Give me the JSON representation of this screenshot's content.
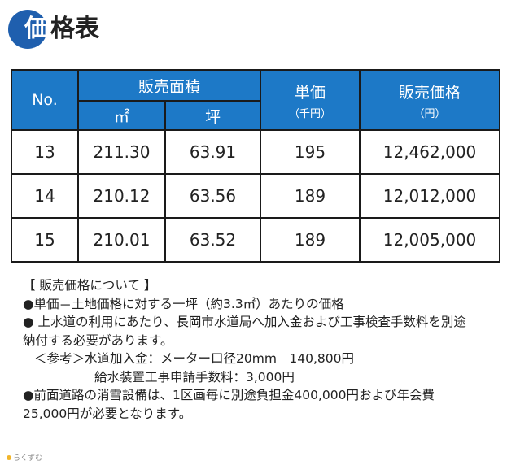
{
  "title": {
    "first_char": "価",
    "rest": "格表"
  },
  "table": {
    "headers": {
      "no": "No.",
      "area": "販売面積",
      "sqm": "㎡",
      "tsubo": "坪",
      "unit_price": "単価",
      "unit_price_sub": "（千円）",
      "sale_price": "販売価格",
      "sale_price_sub": "（円）"
    },
    "rows": [
      {
        "no": "13",
        "sqm": "211.30",
        "tsubo": "63.91",
        "unit": "195",
        "price": "12,462,000"
      },
      {
        "no": "14",
        "sqm": "210.12",
        "tsubo": "63.56",
        "unit": "189",
        "price": "12,012,000"
      },
      {
        "no": "15",
        "sqm": "210.01",
        "tsubo": "63.52",
        "unit": "189",
        "price": "12,005,000"
      }
    ]
  },
  "notes": [
    "【 販売価格について 】",
    "●単価＝土地価格に対する一坪（約3.3㎡）あたりの価格",
    "● 上水道の利用にあたり、長岡市水道局へ加入金および工事検査手数料を別途",
    "納付する必要があります。",
    "＜参考＞水道加入金：メーター口径20mm　140,800円",
    "給水装置工事申請手数料：3,000円",
    "●前面道路の消雪設備は、1区画毎に別途負担金400,000円および年会費",
    "25,000円が必要となります。"
  ],
  "logo_text": "らくずむ",
  "colors": {
    "header_bg": "#1d79c7",
    "title_circle": "#1f5fae"
  }
}
